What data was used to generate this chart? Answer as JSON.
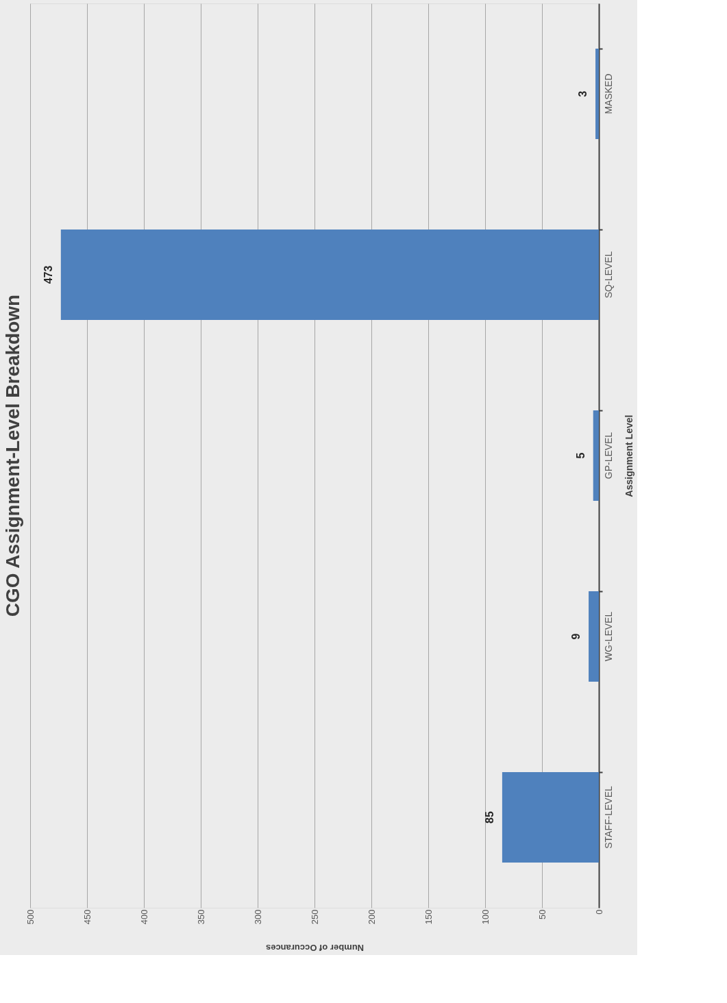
{
  "chart_data": {
    "type": "bar",
    "orientation": "horizontal",
    "title": "CGO Assignment-Level Breakdown",
    "xlabel": "Number of Occurances",
    "ylabel": "Assignment Level",
    "categories": [
      "MASKED",
      "SQ-LEVEL",
      "GP-LEVEL",
      "WG-LEVEL",
      "STAFF-LEVEL"
    ],
    "values": [
      3,
      473,
      5,
      9,
      85
    ],
    "color": "#4f81bd",
    "xlim": [
      500,
      0
    ],
    "xticks": [
      0,
      50,
      100,
      150,
      200,
      250,
      300,
      350,
      400,
      450,
      500
    ],
    "grid": "x",
    "data_labels": true
  }
}
